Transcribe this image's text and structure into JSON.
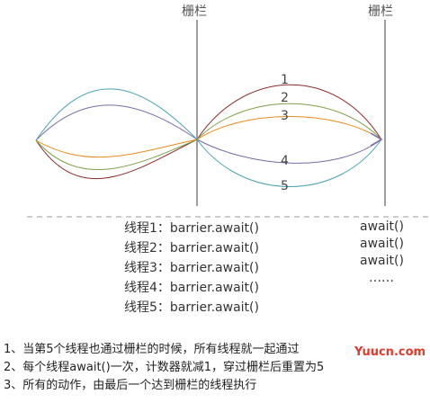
{
  "barrier_labels": [
    "栅栏",
    "栅栏"
  ],
  "curve_numbers": [
    "1",
    "2",
    "3",
    "4",
    "5"
  ],
  "thread_lines": [
    "线程1：barrier.await()",
    "线程2：barrier.await()",
    "线程3：barrier.await()",
    "线程4：barrier.await()",
    "线程5：barrier.await()"
  ],
  "await_lines": [
    "await()",
    "await()",
    "await()",
    "……"
  ],
  "notes": [
    "1、当第5个线程也通过栅栏的时候，所有线程就一起通过",
    "2、每个线程await()一次，计数器就减1，穿过栅栏后重置为5",
    "3、所有的动作，由最后一个达到栅栏的线程执行"
  ],
  "watermark": "Yuucn.com",
  "colors": {
    "barrier_line": "#9e9e9e",
    "thread1": "#8b2a2a",
    "thread2": "#7fa046",
    "thread3": "#e88a1a",
    "thread4": "#7a6aa6",
    "thread5": "#4aa3b5",
    "watermark": "#e03b2c"
  }
}
